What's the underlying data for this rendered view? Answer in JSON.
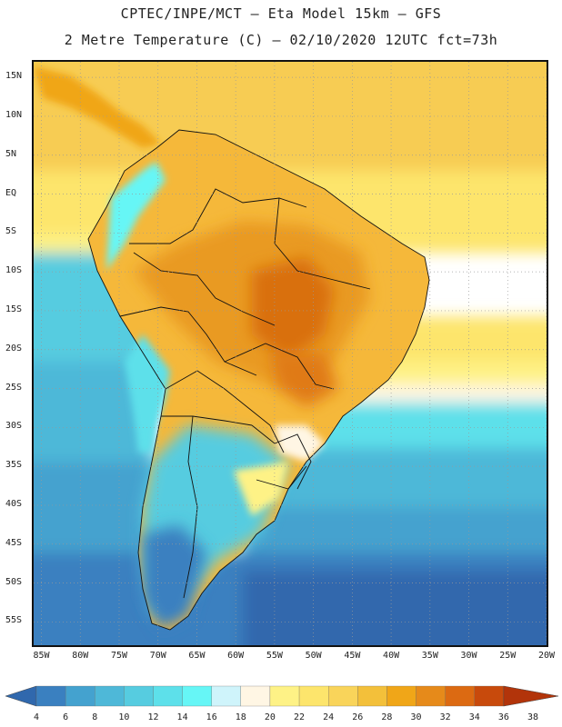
{
  "title": {
    "line1": "CPTEC/INPE/MCT –  Eta Model 15km – GFS",
    "line2": "2 Metre Temperature (C) – 02/10/2020 12UTC fct=73h"
  },
  "map": {
    "lon_range": [
      -86,
      -20
    ],
    "lat_range": [
      -58,
      17
    ],
    "lat_labels": [
      "15N",
      "10N",
      "5N",
      "EQ",
      "5S",
      "10S",
      "15S",
      "20S",
      "25S",
      "30S",
      "35S",
      "40S",
      "45S",
      "50S",
      "55S"
    ],
    "lat_values": [
      15,
      10,
      5,
      0,
      -5,
      -10,
      -15,
      -20,
      -25,
      -30,
      -35,
      -40,
      -45,
      -50,
      -55
    ],
    "lon_labels": [
      "85W",
      "80W",
      "75W",
      "70W",
      "65W",
      "60W",
      "55W",
      "50W",
      "45W",
      "40W",
      "35W",
      "30W",
      "25W",
      "20W"
    ],
    "lon_values": [
      -85,
      -80,
      -75,
      -70,
      -65,
      -60,
      -55,
      -50,
      -45,
      -40,
      -35,
      -30,
      -25,
      -20
    ]
  },
  "colorbar": {
    "levels": [
      "4",
      "6",
      "8",
      "10",
      "12",
      "14",
      "16",
      "18",
      "20",
      "22",
      "24",
      "26",
      "28",
      "30",
      "32",
      "34",
      "36",
      "38"
    ],
    "colors": [
      "#3068ad",
      "#3a80c0",
      "#44a2cf",
      "#4eb8d8",
      "#56cce0",
      "#5de0ea",
      "#66f6f6",
      "#cff4fb",
      "#fff6e4",
      "#fef286",
      "#fde56c",
      "#f9d45a",
      "#f3c03a",
      "#f0a618",
      "#e68a1a",
      "#dc6a12",
      "#c84a0c",
      "#b2340a"
    ]
  },
  "palette": {
    "ocean_south": "#3a78b8",
    "ocean_mid": "#46a8d4",
    "ocean_subtropic": "#54c8df",
    "ocean_north": "#fde56c",
    "caribbean": "#f7cc52",
    "land_hot": "#e68a1a"
  }
}
